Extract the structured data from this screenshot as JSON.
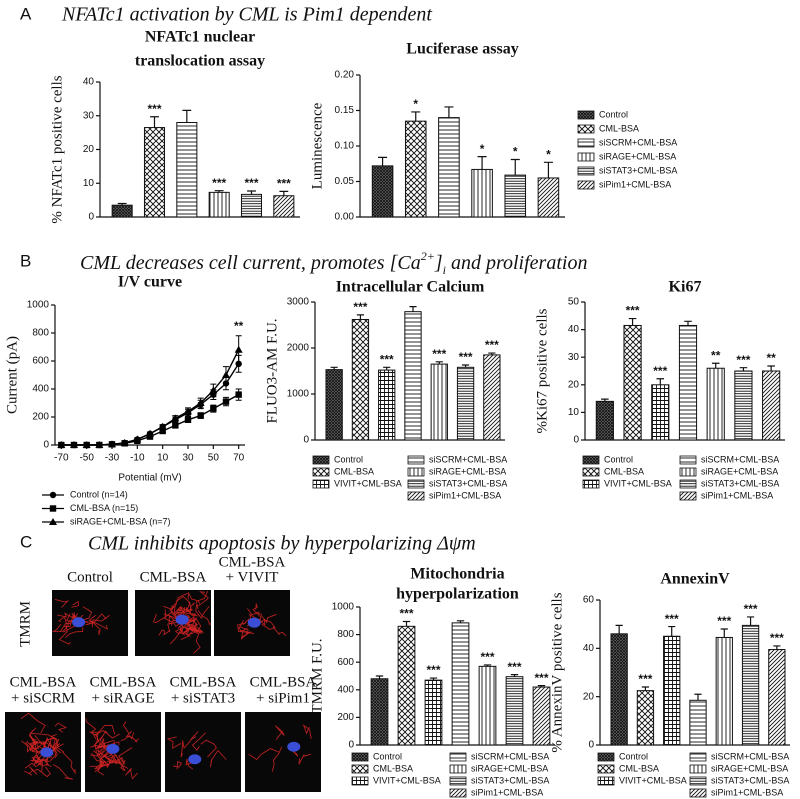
{
  "panels": [
    {
      "label": "A",
      "title": "NFATc1 activation by CML is Pim1 dependent"
    },
    {
      "label": "B",
      "title_parts": [
        "CML decreases cell current, promotes [Ca",
        "2+",
        "]",
        "i",
        " and proliferation"
      ]
    },
    {
      "label": "C",
      "title": "CML inhibits apoptosis by hyperpolarizing Δψm",
      "stain": "TMRM",
      "image_labels": {
        "top": [
          [
            "Control"
          ],
          [
            "CML-BSA"
          ],
          [
            "CML-BSA",
            "+ VIVIT"
          ]
        ],
        "bottom": [
          [
            "CML-BSA",
            "+ siSCRM"
          ],
          [
            "CML-BSA",
            "+ siRAGE"
          ],
          [
            "CML-BSA",
            "+ siSTAT3"
          ],
          [
            "CML-BSA",
            "+ siPim1"
          ]
        ]
      }
    }
  ],
  "chart_data": [
    {
      "type": "bar",
      "title": [
        "NFATc1 nuclear",
        "translocation assay"
      ],
      "ylabel": "% NFATc1 positive cells",
      "values": [
        3.5,
        26.5,
        28,
        7.3,
        6.7,
        6.3
      ],
      "errors": [
        0.5,
        3.2,
        3.6,
        0.5,
        1.0,
        1.3
      ],
      "annotations": [
        null,
        "***",
        null,
        "***",
        "***",
        "***"
      ],
      "patterns": [
        "crosshatch",
        "checker",
        "hlines",
        "vlines",
        "hlines-dense",
        "diagonal"
      ],
      "ylim": [
        0,
        40
      ],
      "yticks": [
        0,
        10,
        20,
        30,
        40
      ]
    },
    {
      "type": "bar",
      "title": "Luciferase assay",
      "ylabel": "Luminescence",
      "categories": [
        "Control",
        "CML-BSA",
        "siSCRM+CML-BSA",
        "siRAGE+CML-BSA",
        "siSTAT3+CML-BSA",
        "siPim1+CML-BSA"
      ],
      "legend": "right",
      "values": [
        0.072,
        0.135,
        0.14,
        0.067,
        0.059,
        0.055
      ],
      "errors": [
        0.012,
        0.013,
        0.015,
        0.018,
        0.022,
        0.022
      ],
      "annotations": [
        null,
        "*",
        null,
        "*",
        "*",
        "*"
      ],
      "patterns": [
        "crosshatch",
        "checker",
        "hlines",
        "vlines",
        "hlines-dense",
        "diagonal"
      ],
      "ylim": [
        0,
        0.2
      ],
      "yticks": [
        {
          "value": 0,
          "label": "0.00"
        },
        {
          "value": 0.05,
          "label": "0.05"
        },
        {
          "value": 0.1,
          "label": "0.10"
        },
        {
          "value": 0.15,
          "label": "0.15"
        },
        {
          "value": 0.2,
          "label": "0.20"
        }
      ]
    },
    {
      "type": "line",
      "title": "I/V curve",
      "ylabel": "Current (pA)",
      "xlabel": "Potential (mV)",
      "legend": "below",
      "annotation": "**",
      "x": [
        -70,
        -60,
        -50,
        -40,
        -30,
        -20,
        -10,
        0,
        10,
        20,
        30,
        40,
        50,
        60,
        70
      ],
      "series": [
        {
          "name": "Control (n=14)",
          "color": "#000000",
          "marker": "circle",
          "values": [
            0,
            0,
            0,
            0,
            5,
            15,
            40,
            80,
            130,
            180,
            230,
            290,
            360,
            440,
            580
          ],
          "errors": [
            0,
            0,
            0,
            0,
            3,
            5,
            8,
            10,
            15,
            20,
            25,
            30,
            35,
            45,
            60
          ]
        },
        {
          "name": "CML-BSA (n=15)",
          "color": "#000000",
          "marker": "square",
          "values": [
            0,
            0,
            0,
            0,
            5,
            12,
            30,
            60,
            100,
            140,
            180,
            210,
            260,
            310,
            360
          ],
          "errors": [
            0,
            0,
            0,
            0,
            3,
            5,
            8,
            10,
            12,
            15,
            18,
            20,
            25,
            30,
            40
          ]
        },
        {
          "name": "siRAGE+CML-BSA (n=7)",
          "color": "#000000",
          "marker": "triangle",
          "values": [
            0,
            0,
            0,
            0,
            5,
            15,
            40,
            80,
            130,
            190,
            240,
            300,
            390,
            500,
            680
          ],
          "errors": [
            0,
            0,
            0,
            0,
            3,
            5,
            8,
            12,
            15,
            20,
            25,
            35,
            45,
            60,
            100
          ]
        }
      ],
      "xlim": [
        -75,
        75
      ],
      "xticks": [
        -70,
        -50,
        -30,
        -10,
        10,
        30,
        50,
        70
      ],
      "ylim": [
        0,
        1000
      ],
      "yticks": [
        0,
        200,
        400,
        600,
        800,
        1000
      ]
    },
    {
      "type": "bar",
      "title": "Intracellular Calcium",
      "ylabel": "FLUO3-AM F.U.",
      "legend": "below",
      "categories": [
        "Control",
        "CML-BSA",
        "VIVIT+CML-BSA",
        "siSCRM+CML-BSA",
        "siRAGE+CML-BSA",
        "siSTAT3+CML-BSA",
        "siPim1+CML-BSA"
      ],
      "values": [
        1530,
        2620,
        1520,
        2790,
        1650,
        1580,
        1850
      ],
      "errors": [
        50,
        100,
        60,
        110,
        50,
        50,
        40
      ],
      "annotations": [
        null,
        "***",
        "***",
        null,
        "***",
        "***",
        "***"
      ],
      "patterns": [
        "crosshatch",
        "checker",
        "grid",
        "hlines",
        "vlines",
        "hlines-dense",
        "diagonal"
      ],
      "ylim": [
        0,
        3000
      ],
      "yticks": [
        0,
        1000,
        2000,
        3000
      ]
    },
    {
      "type": "bar",
      "title": "Ki67",
      "ylabel": "%Ki67 positive cells",
      "legend": "below",
      "categories": [
        "Control",
        "CML-BSA",
        "VIVIT+CML-BSA",
        "siSCRM+CML-BSA",
        "siRAGE+CML-BSA",
        "siSTAT3+CML-BSA",
        "siPim1+CML-BSA"
      ],
      "values": [
        14,
        41.5,
        20,
        41.5,
        26,
        25,
        25
      ],
      "errors": [
        0.8,
        2.5,
        2.2,
        1.5,
        1.8,
        1.2,
        1.8
      ],
      "annotations": [
        null,
        "***",
        "***",
        null,
        "**",
        "***",
        "**"
      ],
      "patterns": [
        "crosshatch",
        "checker",
        "grid",
        "hlines",
        "vlines",
        "hlines-dense",
        "diagonal"
      ],
      "ylim": [
        0,
        50
      ],
      "yticks": [
        0,
        10,
        20,
        30,
        40,
        50
      ]
    },
    {
      "type": "bar",
      "title": [
        "Mitochondria",
        "hyperpolarization"
      ],
      "ylabel": "TMRM F.U.",
      "legend": "below",
      "categories": [
        "Control",
        "CML-BSA",
        "VIVIT+CML-BSA",
        "siSCRM+CML-BSA",
        "siRAGE+CML-BSA",
        "siSTAT3+CML-BSA",
        "siPim1+CML-BSA"
      ],
      "values": [
        480,
        860,
        470,
        885,
        570,
        495,
        420
      ],
      "errors": [
        20,
        35,
        15,
        15,
        10,
        15,
        10
      ],
      "annotations": [
        null,
        "***",
        "***",
        null,
        "***",
        "***",
        "***"
      ],
      "patterns": [
        "crosshatch",
        "checker",
        "grid",
        "hlines",
        "vlines",
        "hlines-dense",
        "diagonal"
      ],
      "ylim": [
        0,
        1000
      ],
      "yticks": [
        0,
        200,
        400,
        600,
        800,
        1000
      ]
    },
    {
      "type": "bar",
      "title": "AnnexinV",
      "ylabel": "% AnnexinV positive cells",
      "legend": "below",
      "categories": [
        "Control",
        "CML-BSA",
        "VIVIT+CML-BSA",
        "siSCRM+CML-BSA",
        "siRAGE+CML-BSA",
        "siSTAT3+CML-BSA",
        "siPim1+CML-BSA"
      ],
      "values": [
        46,
        22.5,
        45,
        18.5,
        44.5,
        49.5,
        39.5
      ],
      "errors": [
        3.5,
        1.5,
        4,
        2.5,
        3.5,
        3.5,
        1.5
      ],
      "annotations": [
        null,
        "***",
        "***",
        null,
        "***",
        "***",
        "***"
      ],
      "patterns": [
        "crosshatch",
        "checker",
        "grid",
        "hlines",
        "vlines",
        "hlines-dense",
        "diagonal"
      ],
      "ylim": [
        0,
        60
      ],
      "yticks": [
        0,
        20,
        40,
        60
      ]
    }
  ]
}
